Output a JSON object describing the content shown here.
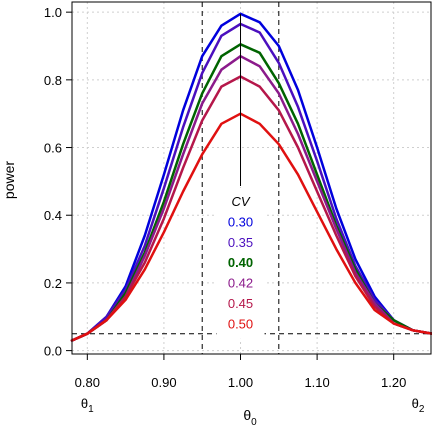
{
  "chart_data": {
    "type": "line",
    "xlabel": "θ",
    "xlabel_sub": "0",
    "ylabel": "power",
    "xlim": [
      0.78,
      1.25
    ],
    "ylim": [
      -0.01,
      1.03
    ],
    "x_ticks": [
      {
        "value": 0.8,
        "label": "0.80"
      },
      {
        "value": 0.9,
        "label": "0.90"
      },
      {
        "value": 1.0,
        "label": "1.00"
      },
      {
        "value": 1.1,
        "label": "1.10"
      },
      {
        "value": 1.2,
        "label": "1.20"
      }
    ],
    "y_ticks": [
      {
        "value": 0.0,
        "label": "0.0"
      },
      {
        "value": 0.2,
        "label": "0.2"
      },
      {
        "value": 0.4,
        "label": "0.4"
      },
      {
        "value": 0.6,
        "label": "0.6"
      },
      {
        "value": 0.8,
        "label": "0.8"
      },
      {
        "value": 1.0,
        "label": "1.0"
      }
    ],
    "theta_labels": [
      {
        "value": 0.8,
        "text": "θ",
        "sub": "1"
      },
      {
        "value": 1.25,
        "text": "θ",
        "sub": "2"
      }
    ],
    "reference_lines": {
      "vertical": [
        0.95,
        1.05
      ],
      "horizontal": [
        0.05
      ],
      "center_x": 1.0
    },
    "grid": true,
    "legend": {
      "title": "CV",
      "placement": "center"
    },
    "series": [
      {
        "name": "0.30",
        "color": "#0000dd",
        "bold": false,
        "peak": 0.995,
        "x": [
          0.78,
          0.8,
          0.825,
          0.85,
          0.875,
          0.9,
          0.925,
          0.95,
          0.975,
          1.0,
          1.025,
          1.05,
          1.075,
          1.1,
          1.125,
          1.15,
          1.175,
          1.2,
          1.225,
          1.25
        ],
        "y": [
          0.03,
          0.05,
          0.1,
          0.19,
          0.34,
          0.52,
          0.71,
          0.87,
          0.96,
          0.995,
          0.97,
          0.9,
          0.77,
          0.6,
          0.42,
          0.27,
          0.16,
          0.09,
          0.06,
          0.05
        ]
      },
      {
        "name": "0.35",
        "color": "#4b0fbe",
        "bold": false,
        "peak": 0.965,
        "x": [
          0.78,
          0.8,
          0.825,
          0.85,
          0.875,
          0.9,
          0.925,
          0.95,
          0.975,
          1.0,
          1.025,
          1.05,
          1.075,
          1.1,
          1.125,
          1.15,
          1.175,
          1.2,
          1.225,
          1.25
        ],
        "y": [
          0.03,
          0.05,
          0.1,
          0.18,
          0.31,
          0.48,
          0.66,
          0.82,
          0.93,
          0.965,
          0.94,
          0.85,
          0.72,
          0.56,
          0.39,
          0.25,
          0.15,
          0.09,
          0.06,
          0.05
        ]
      },
      {
        "name": "0.40",
        "color": "#006400",
        "bold": true,
        "peak": 0.905,
        "x": [
          0.78,
          0.8,
          0.825,
          0.85,
          0.875,
          0.9,
          0.925,
          0.95,
          0.975,
          1.0,
          1.025,
          1.05,
          1.075,
          1.1,
          1.125,
          1.15,
          1.175,
          1.2,
          1.225,
          1.25
        ],
        "y": [
          0.03,
          0.05,
          0.09,
          0.17,
          0.29,
          0.44,
          0.61,
          0.76,
          0.87,
          0.905,
          0.88,
          0.79,
          0.67,
          0.52,
          0.37,
          0.24,
          0.14,
          0.09,
          0.06,
          0.05
        ]
      },
      {
        "name": "0.42",
        "color": "#8b1a8b",
        "bold": false,
        "peak": 0.87,
        "x": [
          0.78,
          0.8,
          0.825,
          0.85,
          0.875,
          0.9,
          0.925,
          0.95,
          0.975,
          1.0,
          1.025,
          1.05,
          1.075,
          1.1,
          1.125,
          1.15,
          1.175,
          1.2,
          1.225,
          1.25
        ],
        "y": [
          0.03,
          0.05,
          0.09,
          0.16,
          0.28,
          0.42,
          0.58,
          0.73,
          0.83,
          0.87,
          0.84,
          0.76,
          0.64,
          0.5,
          0.36,
          0.23,
          0.14,
          0.08,
          0.06,
          0.05
        ]
      },
      {
        "name": "0.45",
        "color": "#b5174a",
        "bold": false,
        "peak": 0.81,
        "x": [
          0.78,
          0.8,
          0.825,
          0.85,
          0.875,
          0.9,
          0.925,
          0.95,
          0.975,
          1.0,
          1.025,
          1.05,
          1.075,
          1.1,
          1.125,
          1.15,
          1.175,
          1.2,
          1.225,
          1.25
        ],
        "y": [
          0.03,
          0.05,
          0.09,
          0.16,
          0.26,
          0.39,
          0.54,
          0.68,
          0.78,
          0.81,
          0.78,
          0.71,
          0.6,
          0.47,
          0.34,
          0.22,
          0.13,
          0.08,
          0.06,
          0.05
        ]
      },
      {
        "name": "0.50",
        "color": "#e01010",
        "bold": false,
        "peak": 0.7,
        "x": [
          0.78,
          0.8,
          0.825,
          0.85,
          0.875,
          0.9,
          0.925,
          0.95,
          0.975,
          1.0,
          1.025,
          1.05,
          1.075,
          1.1,
          1.125,
          1.15,
          1.175,
          1.2,
          1.225,
          1.25
        ],
        "y": [
          0.03,
          0.05,
          0.09,
          0.15,
          0.24,
          0.35,
          0.47,
          0.58,
          0.67,
          0.7,
          0.67,
          0.61,
          0.52,
          0.41,
          0.3,
          0.2,
          0.12,
          0.08,
          0.06,
          0.05
        ]
      }
    ]
  }
}
